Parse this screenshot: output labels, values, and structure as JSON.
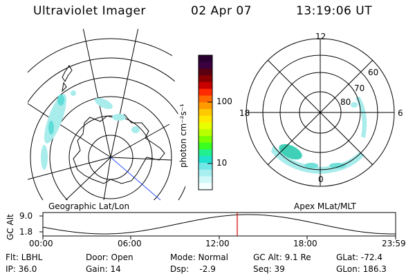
{
  "header": {
    "instrument": "Ultraviolet Imager",
    "date": "02 Apr 07",
    "time": "13:19:06 UT"
  },
  "colorbar": {
    "unit_label": "photon cm⁻²s⁻¹",
    "ticks": [
      "100",
      "10"
    ],
    "colors": [
      "#2a0030",
      "#3a0040",
      "#5a0010",
      "#8a0000",
      "#c80000",
      "#ff2a00",
      "#ff6a00",
      "#ff9a00",
      "#ffc800",
      "#ffe800",
      "#e8ff00",
      "#b8ff00",
      "#7aff00",
      "#3aff20",
      "#20f090",
      "#20e0d0",
      "#70e8e8",
      "#a8f0f0",
      "#d0f8f8",
      "#f4ffff"
    ]
  },
  "left_panel": {
    "caption": "Geographic Lat/Lon"
  },
  "right_panel": {
    "caption": "Apex MLat/MLT",
    "mlt_labels": {
      "top": "12",
      "left": "18",
      "right": "6",
      "bottom": "0"
    },
    "mlat_labels": [
      "60",
      "70",
      "80"
    ]
  },
  "altitude_plot": {
    "ylabel": "GC Alt",
    "y_ticks": [
      "9.0",
      "1.8"
    ],
    "x_ticks": [
      "00:00",
      "06:00",
      "12:00",
      "18:00",
      "23:59"
    ],
    "current_time_color": "#cc0000"
  },
  "info": {
    "filter": "Flt: LBHL",
    "door": "Door: Open",
    "mode": "Mode: Normal",
    "gc_alt": "GC Alt: 9.1 Re",
    "glat": "GLat: -72.4",
    "ip": "IP: 36.0",
    "gain": "Gain: 14",
    "dsp": "Dsp:    -2.9",
    "seq": "Seq: 39",
    "glon": "GLon: 186.3"
  }
}
